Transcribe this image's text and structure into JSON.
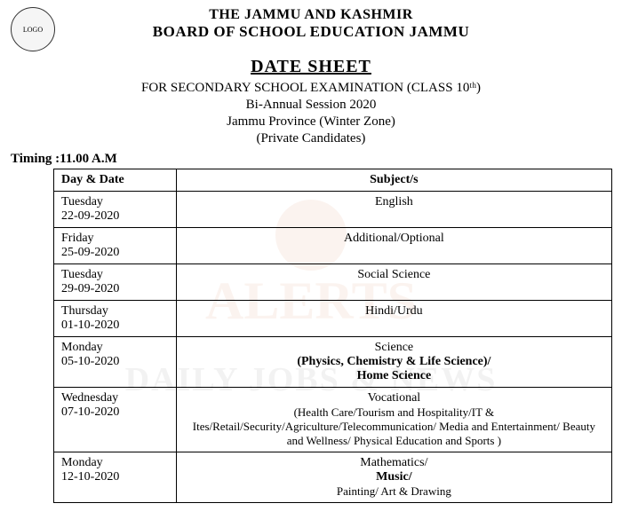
{
  "header": {
    "org_line1": "THE JAMMU AND KASHMIR",
    "org_line2": "BOARD OF SCHOOL EDUCATION JAMMU",
    "logo_label": "LOGO"
  },
  "title": {
    "main": "DATE SHEET",
    "exam": "FOR SECONDARY SCHOOL EXAMINATION (CLASS 10ᵗʰ)",
    "session": "Bi-Annual Session 2020",
    "province": "Jammu Province (Winter Zone)",
    "candidates": "(Private Candidates)"
  },
  "timing": "Timing :11.00 A.M",
  "table": {
    "header_date": "Day & Date",
    "header_subject": "Subject/s",
    "rows": [
      {
        "day": "Tuesday",
        "date": "22-09-2020",
        "subject_main": "English",
        "subject_sub": "",
        "subject_detail": ""
      },
      {
        "day": "Friday",
        "date": "25-09-2020",
        "subject_main": "Additional/Optional",
        "subject_sub": "",
        "subject_detail": ""
      },
      {
        "day": "Tuesday",
        "date": "29-09-2020",
        "subject_main": "Social Science",
        "subject_sub": "",
        "subject_detail": ""
      },
      {
        "day": "Thursday",
        "date": "01-10-2020",
        "subject_main": "Hindi/Urdu",
        "subject_sub": "",
        "subject_detail": ""
      },
      {
        "day": "Monday",
        "date": "05-10-2020",
        "subject_main": "Science",
        "subject_sub": "(Physics, Chemistry & Life Science)/",
        "subject_detail": "Home Science"
      },
      {
        "day": "Wednesday",
        "date": "07-10-2020",
        "subject_main": "Vocational",
        "subject_sub": "",
        "subject_detail": "(Health Care/Tourism and Hospitality/IT & Ites/Retail/Security/Agriculture/Telecommunication/ Media and Entertainment/ Beauty and Wellness/ Physical Education and Sports )"
      },
      {
        "day": "Monday",
        "date": "12-10-2020",
        "subject_main": "Mathematics/",
        "subject_sub": "Music/",
        "subject_detail": "Painting/ Art &   Drawing"
      }
    ]
  },
  "watermark": {
    "line1": "ALERTS",
    "line2": "DAILY JOBS & NEWS"
  },
  "colors": {
    "background": "#ffffff",
    "text": "#000000",
    "border": "#000000",
    "watermark_orange": "rgba(200,100,50,0.08)",
    "watermark_gray": "rgba(150,150,150,0.12)"
  },
  "fonts": {
    "family": "Times New Roman",
    "header_size": 17,
    "title_size": 20,
    "body_size": 14
  }
}
